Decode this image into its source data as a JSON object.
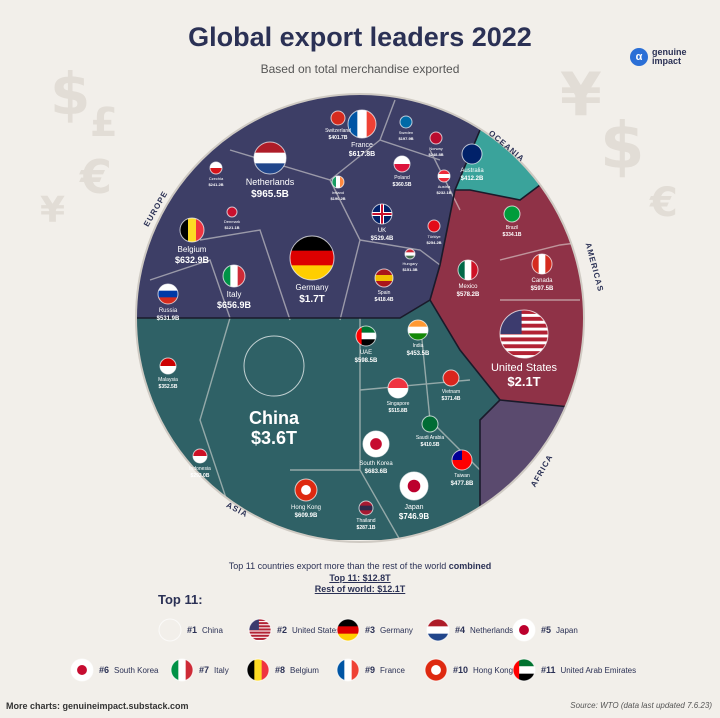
{
  "title": "Global export leaders 2022",
  "subtitle": "Based on total merchandise exported",
  "brand": {
    "line1": "genuine",
    "line2": "impact",
    "mark": "α"
  },
  "chart_data": {
    "type": "voronoi-treemap",
    "title": "Global export leaders 2022",
    "subtitle": "Based on total merchandise exported",
    "unit": "USD",
    "regions": [
      {
        "name": "EUROPE",
        "color": "#3d3e66"
      },
      {
        "name": "OCEANIA",
        "color": "#3aa39b"
      },
      {
        "name": "AMERICAS",
        "color": "#8f3247"
      },
      {
        "name": "AFRICA",
        "color": "#5a4a6e"
      },
      {
        "name": "ASIA",
        "color": "#2f6166"
      }
    ],
    "countries": [
      {
        "name": "China",
        "value_label": "$3.6T",
        "value_b": 3600,
        "region": "ASIA"
      },
      {
        "name": "United States",
        "value_label": "$2.1T",
        "value_b": 2100,
        "region": "AMERICAS"
      },
      {
        "name": "Germany",
        "value_label": "$1.7T",
        "value_b": 1700,
        "region": "EUROPE"
      },
      {
        "name": "Netherlands",
        "value_label": "$965.5B",
        "value_b": 965.5,
        "region": "EUROPE"
      },
      {
        "name": "Japan",
        "value_label": "$746.9B",
        "value_b": 746.9,
        "region": "ASIA"
      },
      {
        "name": "South Korea",
        "value_label": "$683.6B",
        "value_b": 683.6,
        "region": "ASIA"
      },
      {
        "name": "Italy",
        "value_label": "$656.9B",
        "value_b": 656.9,
        "region": "EUROPE"
      },
      {
        "name": "Belgium",
        "value_label": "$632.9B",
        "value_b": 632.9,
        "region": "EUROPE"
      },
      {
        "name": "France",
        "value_label": "$617.8B",
        "value_b": 617.8,
        "region": "EUROPE"
      },
      {
        "name": "Hong Kong",
        "value_label": "$609.9B",
        "value_b": 609.9,
        "region": "ASIA"
      },
      {
        "name": "UAE",
        "value_label": "$598.5B",
        "value_b": 598.5,
        "region": "ASIA"
      },
      {
        "name": "Mexico",
        "value_label": "$578.2B",
        "value_b": 578.2,
        "region": "AMERICAS"
      },
      {
        "name": "Canada",
        "value_label": "$597.5B",
        "value_b": 597.5,
        "region": "AMERICAS"
      },
      {
        "name": "Russia",
        "value_label": "$531.9B",
        "value_b": 531.9,
        "region": "EUROPE"
      },
      {
        "name": "UK",
        "value_label": "$529.4B",
        "value_b": 529.4,
        "region": "EUROPE"
      },
      {
        "name": "Singapore",
        "value_label": "$515.8B",
        "value_b": 515.8,
        "region": "ASIA"
      },
      {
        "name": "India",
        "value_label": "$453.5B",
        "value_b": 453.5,
        "region": "ASIA"
      },
      {
        "name": "Taiwan",
        "value_label": "$477.8B",
        "value_b": 477.8,
        "region": "ASIA"
      },
      {
        "name": "Spain",
        "value_label": "$418.4B",
        "value_b": 418.4,
        "region": "EUROPE"
      },
      {
        "name": "Australia",
        "value_label": "$412.2B",
        "value_b": 412.2,
        "region": "OCEANIA"
      },
      {
        "name": "Switzerland",
        "value_label": "$401.7B",
        "value_b": 401.7,
        "region": "EUROPE"
      },
      {
        "name": "Saudi Arabia",
        "value_label": "$410.5B",
        "value_b": 410.5,
        "region": "ASIA"
      },
      {
        "name": "Poland",
        "value_label": "$360.5B",
        "value_b": 360.5,
        "region": "EUROPE"
      },
      {
        "name": "Vietnam",
        "value_label": "$371.4B",
        "value_b": 371.4,
        "region": "ASIA"
      },
      {
        "name": "Malaysia",
        "value_label": "$352.5B",
        "value_b": 352.5,
        "region": "ASIA"
      },
      {
        "name": "Brazil",
        "value_label": "$334.1B",
        "value_b": 334.1,
        "region": "AMERICAS"
      },
      {
        "name": "Thailand",
        "value_label": "$287.1B",
        "value_b": 287.1,
        "region": "ASIA"
      },
      {
        "name": "Indonesia",
        "value_label": "$292.0B",
        "value_b": 292.0,
        "region": "ASIA"
      },
      {
        "name": "Czechia",
        "value_label": "$241.2B",
        "value_b": 241.2,
        "region": "EUROPE"
      },
      {
        "name": "Austria",
        "value_label": "$232.1B",
        "value_b": 232.1,
        "region": "EUROPE"
      },
      {
        "name": "Sweden",
        "value_label": "$197.9B",
        "value_b": 197.9,
        "region": "EUROPE"
      },
      {
        "name": "Ireland",
        "value_label": "$190.2B",
        "value_b": 190.2,
        "region": "EUROPE"
      },
      {
        "name": "Norway",
        "value_label": "$248.8B",
        "value_b": 248.8,
        "region": "EUROPE"
      },
      {
        "name": "Türkiye",
        "value_label": "$254.2B",
        "value_b": 254.2,
        "region": "EUROPE"
      },
      {
        "name": "Hungary",
        "value_label": "$151.3B",
        "value_b": 151.3,
        "region": "EUROPE"
      },
      {
        "name": "Denmark",
        "value_label": "$121.1B",
        "value_b": 121.1,
        "region": "EUROPE"
      }
    ]
  },
  "notes": {
    "line1_a": "Top 11 countries export more than the rest of the world ",
    "line1_b": "combined",
    "line2": "Top 11: $12.8T",
    "line3": "Rest of world: $12.1T"
  },
  "legend": {
    "title": "Top 11:",
    "items": [
      {
        "rank": "#1",
        "name": "China"
      },
      {
        "rank": "#2",
        "name": "United States"
      },
      {
        "rank": "#3",
        "name": "Germany"
      },
      {
        "rank": "#4",
        "name": "Netherlands"
      },
      {
        "rank": "#5",
        "name": "Japan"
      },
      {
        "rank": "#6",
        "name": "South Korea"
      },
      {
        "rank": "#7",
        "name": "Italy"
      },
      {
        "rank": "#8",
        "name": "Belgium"
      },
      {
        "rank": "#9",
        "name": "France"
      },
      {
        "rank": "#10",
        "name": "Hong Kong"
      },
      {
        "rank": "#11",
        "name": "United Arab Emirates"
      }
    ]
  },
  "footer": {
    "left": "More charts: genuineimpact.substack.com",
    "right": "Source: WTO (data last updated 7.6.23)"
  }
}
